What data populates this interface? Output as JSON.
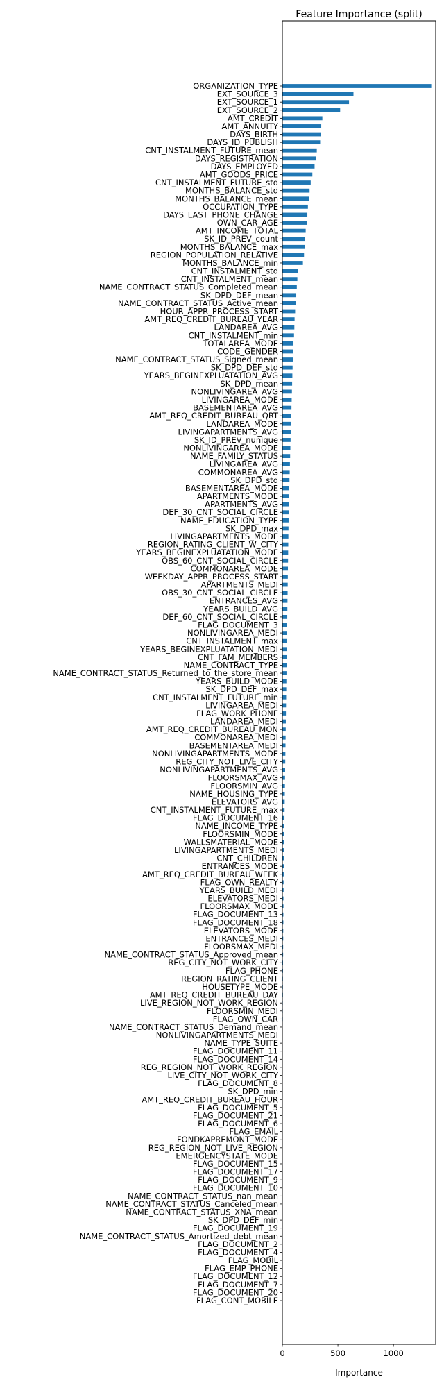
{
  "chart_data": {
    "type": "bar",
    "orientation": "horizontal",
    "title": "Feature Importance (split)",
    "xlabel": "Importance",
    "ylabel": "",
    "xlim": [
      0,
      1380
    ],
    "xticks": [
      "0",
      "500",
      "1000"
    ],
    "xtick_values": [
      0,
      500,
      1000
    ],
    "bar_color": "#1f77b4",
    "grid": false,
    "categories": [
      "ORGANIZATION_TYPE",
      "EXT_SOURCE_3",
      "EXT_SOURCE_1",
      "EXT_SOURCE_2",
      "AMT_CREDIT",
      "AMT_ANNUITY",
      "DAYS_BIRTH",
      "DAYS_ID_PUBLISH",
      "CNT_INSTALMENT_FUTURE_mean",
      "DAYS_REGISTRATION",
      "DAYS_EMPLOYED",
      "AMT_GOODS_PRICE",
      "CNT_INSTALMENT_FUTURE_std",
      "MONTHS_BALANCE_std",
      "MONTHS_BALANCE_mean",
      "OCCUPATION_TYPE",
      "DAYS_LAST_PHONE_CHANGE",
      "OWN_CAR_AGE",
      "AMT_INCOME_TOTAL",
      "SK_ID_PREV_count",
      "MONTHS_BALANCE_max",
      "REGION_POPULATION_RELATIVE",
      "MONTHS_BALANCE_min",
      "CNT_INSTALMENT_std",
      "CNT_INSTALMENT_mean",
      "NAME_CONTRACT_STATUS_Completed_mean",
      "SK_DPD_DEF_mean",
      "NAME_CONTRACT_STATUS_Active_mean",
      "HOUR_APPR_PROCESS_START",
      "AMT_REQ_CREDIT_BUREAU_YEAR",
      "LANDAREA_AVG",
      "CNT_INSTALMENT_min",
      "TOTALAREA_MODE",
      "CODE_GENDER",
      "NAME_CONTRACT_STATUS_Signed_mean",
      "SK_DPD_DEF_std",
      "YEARS_BEGINEXPLUATATION_AVG",
      "SK_DPD_mean",
      "NONLIVINGAREA_AVG",
      "LIVINGAREA_MODE",
      "BASEMENTAREA_AVG",
      "AMT_REQ_CREDIT_BUREAU_QRT",
      "LANDAREA_MODE",
      "LIVINGAPARTMENTS_AVG",
      "SK_ID_PREV_nunique",
      "NONLIVINGAREA_MODE",
      "NAME_FAMILY_STATUS",
      "LIVINGAREA_AVG",
      "COMMONAREA_AVG",
      "SK_DPD_std",
      "BASEMENTAREA_MODE",
      "APARTMENTS_MODE",
      "APARTMENTS_AVG",
      "DEF_30_CNT_SOCIAL_CIRCLE",
      "NAME_EDUCATION_TYPE",
      "SK_DPD_max",
      "LIVINGAPARTMENTS_MODE",
      "REGION_RATING_CLIENT_W_CITY",
      "YEARS_BEGINEXPLUATATION_MODE",
      "OBS_60_CNT_SOCIAL_CIRCLE",
      "COMMONAREA_MODE",
      "WEEKDAY_APPR_PROCESS_START",
      "APARTMENTS_MEDI",
      "OBS_30_CNT_SOCIAL_CIRCLE",
      "ENTRANCES_AVG",
      "YEARS_BUILD_AVG",
      "DEF_60_CNT_SOCIAL_CIRCLE",
      "FLAG_DOCUMENT_3",
      "NONLIVINGAREA_MEDI",
      "CNT_INSTALMENT_max",
      "YEARS_BEGINEXPLUATATION_MEDI",
      "CNT_FAM_MEMBERS",
      "NAME_CONTRACT_TYPE",
      "NAME_CONTRACT_STATUS_Returned_to_the_store_mean",
      "YEARS_BUILD_MODE",
      "SK_DPD_DEF_max",
      "CNT_INSTALMENT_FUTURE_min",
      "LIVINGAREA_MEDI",
      "FLAG_WORK_PHONE",
      "LANDAREA_MEDI",
      "AMT_REQ_CREDIT_BUREAU_MON",
      "COMMONAREA_MEDI",
      "BASEMENTAREA_MEDI",
      "NONLIVINGAPARTMENTS_MODE",
      "REG_CITY_NOT_LIVE_CITY",
      "NONLIVINGAPARTMENTS_AVG",
      "FLOORSMAX_AVG",
      "FLOORSMIN_AVG",
      "NAME_HOUSING_TYPE",
      "ELEVATORS_AVG",
      "CNT_INSTALMENT_FUTURE_max",
      "FLAG_DOCUMENT_16",
      "NAME_INCOME_TYPE",
      "FLOORSMIN_MODE",
      "WALLSMATERIAL_MODE",
      "LIVINGAPARTMENTS_MEDI",
      "CNT_CHILDREN",
      "ENTRANCES_MODE",
      "AMT_REQ_CREDIT_BUREAU_WEEK",
      "FLAG_OWN_REALTY",
      "YEARS_BUILD_MEDI",
      "ELEVATORS_MEDI",
      "FLOORSMAX_MODE",
      "FLAG_DOCUMENT_13",
      "FLAG_DOCUMENT_18",
      "ELEVATORS_MODE",
      "ENTRANCES_MEDI",
      "FLOORSMAX_MEDI",
      "NAME_CONTRACT_STATUS_Approved_mean",
      "REG_CITY_NOT_WORK_CITY",
      "FLAG_PHONE",
      "REGION_RATING_CLIENT",
      "HOUSETYPE_MODE",
      "AMT_REQ_CREDIT_BUREAU_DAY",
      "LIVE_REGION_NOT_WORK_REGION",
      "FLOORSMIN_MEDI",
      "FLAG_OWN_CAR",
      "NAME_CONTRACT_STATUS_Demand_mean",
      "NONLIVINGAPARTMENTS_MEDI",
      "NAME_TYPE_SUITE",
      "FLAG_DOCUMENT_11",
      "FLAG_DOCUMENT_14",
      "REG_REGION_NOT_WORK_REGION",
      "LIVE_CITY_NOT_WORK_CITY",
      "FLAG_DOCUMENT_8",
      "SK_DPD_min",
      "AMT_REQ_CREDIT_BUREAU_HOUR",
      "FLAG_DOCUMENT_5",
      "FLAG_DOCUMENT_21",
      "FLAG_DOCUMENT_6",
      "FLAG_EMAIL",
      "FONDKAPREMONT_MODE",
      "REG_REGION_NOT_LIVE_REGION",
      "EMERGENCYSTATE_MODE",
      "FLAG_DOCUMENT_15",
      "FLAG_DOCUMENT_17",
      "FLAG_DOCUMENT_9",
      "FLAG_DOCUMENT_10",
      "NAME_CONTRACT_STATUS_nan_mean",
      "NAME_CONTRACT_STATUS_Canceled_mean",
      "NAME_CONTRACT_STATUS_XNA_mean",
      "SK_DPD_DEF_min",
      "FLAG_DOCUMENT_19",
      "NAME_CONTRACT_STATUS_Amortized_debt_mean",
      "FLAG_DOCUMENT_2",
      "FLAG_DOCUMENT_4",
      "FLAG_MOBIL",
      "FLAG_EMP_PHONE",
      "FLAG_DOCUMENT_12",
      "FLAG_DOCUMENT_7",
      "FLAG_DOCUMENT_20",
      "FLAG_CONT_MOBILE"
    ],
    "values": [
      1340,
      640,
      600,
      520,
      360,
      350,
      345,
      340,
      310,
      300,
      290,
      270,
      255,
      245,
      240,
      230,
      225,
      220,
      210,
      205,
      200,
      195,
      185,
      140,
      135,
      130,
      125,
      120,
      115,
      110,
      108,
      105,
      100,
      97,
      95,
      92,
      90,
      88,
      86,
      84,
      82,
      80,
      78,
      76,
      74,
      72,
      70,
      68,
      66,
      64,
      62,
      60,
      58,
      57,
      56,
      55,
      54,
      53,
      52,
      51,
      50,
      49,
      48,
      47,
      46,
      45,
      44,
      43,
      42,
      41,
      40,
      39,
      38,
      37,
      36,
      35,
      34,
      33,
      32,
      31,
      30,
      29,
      28,
      27,
      26,
      25,
      24,
      23,
      22,
      21,
      20,
      19,
      18,
      17,
      16,
      15,
      14,
      13,
      12,
      11,
      11,
      10,
      10,
      9,
      9,
      8,
      8,
      7,
      7,
      6,
      6,
      5,
      5,
      5,
      4,
      4,
      4,
      3,
      3,
      3,
      3,
      2,
      2,
      2,
      2,
      2,
      1,
      1,
      1,
      1,
      1,
      1,
      1,
      1,
      0,
      0,
      0,
      0,
      0,
      0,
      0,
      0,
      0,
      0,
      0,
      0,
      0,
      0,
      0,
      0,
      0,
      0
    ]
  }
}
